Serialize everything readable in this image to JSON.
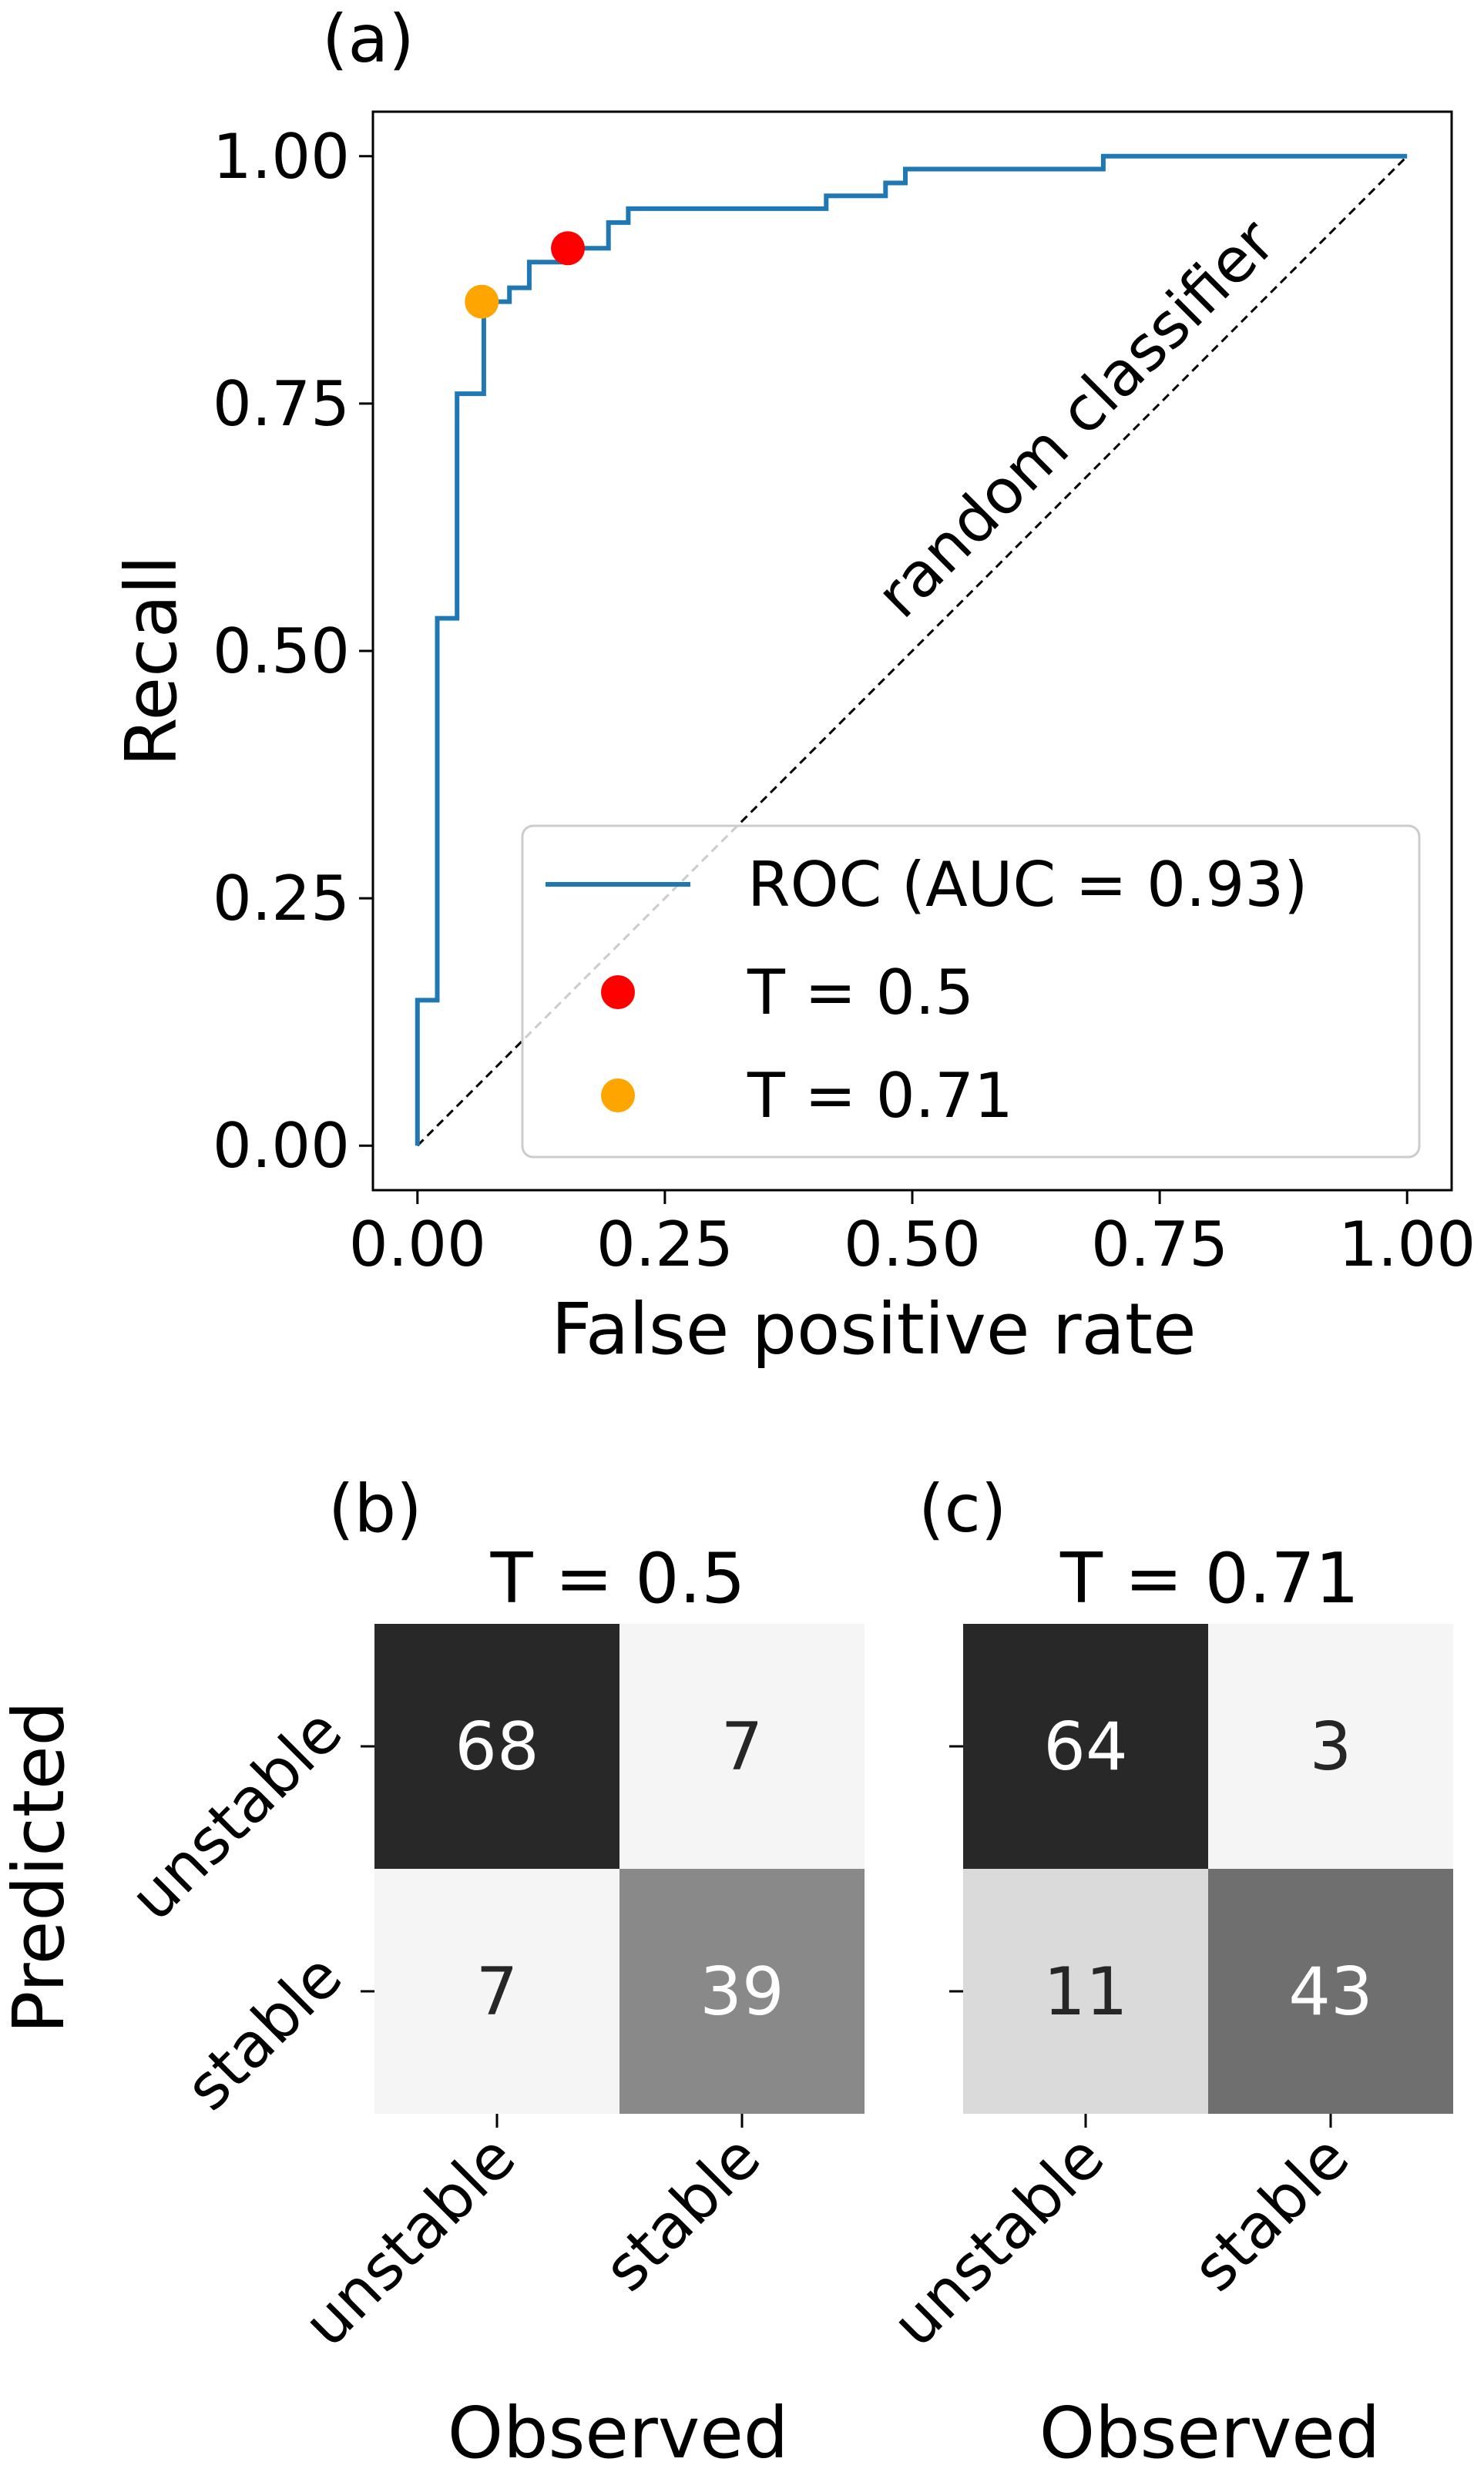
{
  "chart_data": [
    {
      "type": "line",
      "panel_label": "(a)",
      "xlabel": "False positive rate",
      "ylabel": "Recall",
      "xlim": [
        -0.045,
        1.045
      ],
      "ylim": [
        -0.045,
        1.045
      ],
      "xticks": [
        "0.00",
        "0.25",
        "0.50",
        "0.75",
        "1.00"
      ],
      "yticks": [
        "0.00",
        "0.25",
        "0.50",
        "0.75",
        "1.00"
      ],
      "grid": false,
      "legend_position": "lower-right",
      "annotation": "random classifier",
      "series": [
        {
          "name": "ROC (AUC = 0.93)",
          "color": "#1f77b4",
          "x": [
            0.0,
            0.0,
            0.02,
            0.02,
            0.04,
            0.04,
            0.067,
            0.067,
            0.093,
            0.093,
            0.113,
            0.113,
            0.153,
            0.153,
            0.193,
            0.193,
            0.213,
            0.213,
            0.413,
            0.413,
            0.473,
            0.473,
            0.493,
            0.493,
            0.693,
            0.693,
            1.0
          ],
          "y": [
            0.0,
            0.147,
            0.147,
            0.533,
            0.533,
            0.76,
            0.76,
            0.853,
            0.853,
            0.867,
            0.867,
            0.893,
            0.893,
            0.907,
            0.907,
            0.933,
            0.933,
            0.947,
            0.947,
            0.96,
            0.96,
            0.973,
            0.973,
            0.987,
            0.987,
            1.0,
            1.0
          ]
        },
        {
          "name": "T = 0.5",
          "type": "scatter",
          "color": "#ff0000",
          "x": [
            0.152
          ],
          "y": [
            0.907
          ]
        },
        {
          "name": "T = 0.71",
          "type": "scatter",
          "color": "#ffa500",
          "x": [
            0.065
          ],
          "y": [
            0.853
          ]
        }
      ]
    },
    {
      "type": "heatmap",
      "panel_label": "(b)",
      "title": "T = 0.5",
      "ylabel": "Predicted",
      "xlabel": "Observed",
      "row_labels": [
        "unstable",
        "stable"
      ],
      "col_labels": [
        "unstable",
        "stable"
      ],
      "values": [
        [
          68,
          7
        ],
        [
          7,
          39
        ]
      ]
    },
    {
      "type": "heatmap",
      "panel_label": "(c)",
      "title": "T = 0.71",
      "xlabel": "Observed",
      "row_labels": [
        "unstable",
        "stable"
      ],
      "col_labels": [
        "unstable",
        "stable"
      ],
      "values": [
        [
          64,
          3
        ],
        [
          11,
          43
        ]
      ]
    }
  ]
}
